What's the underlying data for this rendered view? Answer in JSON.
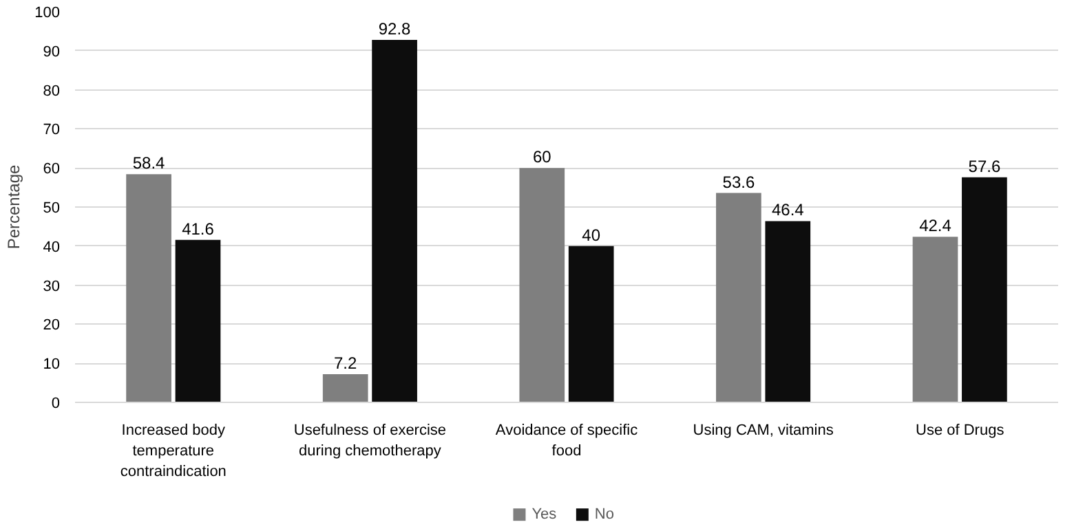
{
  "chart_data": {
    "type": "bar",
    "ylabel": "Percentage",
    "categories": [
      "Increased body temperature contraindication",
      "Usefulness of exercise during chemotherapy",
      "Avoidance of specific food",
      "Using CAM, vitamins",
      "Use of Drugs"
    ],
    "series": [
      {
        "name": "Yes",
        "color": "#7f7f7f",
        "values": [
          58.4,
          7.2,
          60,
          53.6,
          42.4
        ]
      },
      {
        "name": "No",
        "color": "#0d0d0d",
        "values": [
          41.6,
          92.8,
          40,
          46.4,
          57.6
        ]
      }
    ],
    "ylim": [
      0,
      100
    ],
    "yticks": [
      0,
      10,
      20,
      30,
      40,
      50,
      60,
      70,
      80,
      90,
      100
    ],
    "grid": "y",
    "legend": "bottom",
    "data_labels": true
  }
}
